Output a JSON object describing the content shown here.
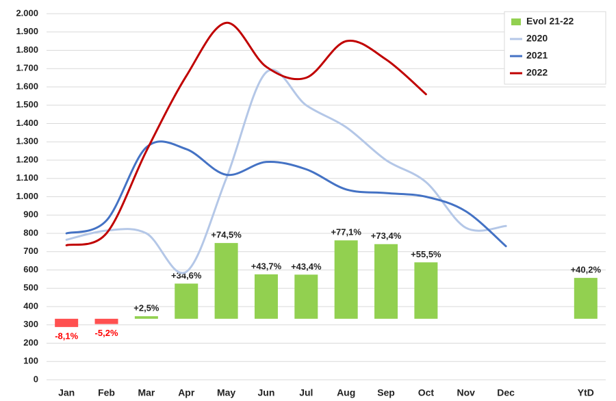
{
  "chart_data": {
    "type": "bar_line",
    "categories": [
      "Jan",
      "Feb",
      "Mar",
      "Apr",
      "May",
      "Jun",
      "Jul",
      "Aug",
      "Sep",
      "Oct",
      "Nov",
      "Dec",
      null,
      "YtD"
    ],
    "ylim": [
      0,
      2000
    ],
    "yticks": [
      0,
      100,
      200,
      300,
      400,
      500,
      600,
      700,
      800,
      900,
      {
        "value": 1000,
        "label": "1.000"
      },
      {
        "value": 1100,
        "label": "1.100"
      },
      {
        "value": 1200,
        "label": "1.200"
      },
      {
        "value": 1300,
        "label": "1.300"
      },
      {
        "value": 1400,
        "label": "1.400"
      },
      {
        "value": 1500,
        "label": "1.500"
      },
      {
        "value": 1600,
        "label": "1.600"
      },
      {
        "value": 1700,
        "label": "1.700"
      },
      {
        "value": 1800,
        "label": "1.800"
      },
      {
        "value": 1900,
        "label": "1.900"
      },
      {
        "value": 2000,
        "label": "2.000"
      }
    ],
    "y2lim": [
      -60,
      300
    ],
    "grid": true,
    "legend": "top-right",
    "bars": {
      "name": "Evol 21-22",
      "color": "#92d050",
      "negative_color": "#ff5050",
      "axis": "y2",
      "values": [
        -8.1,
        -5.2,
        2.5,
        34.6,
        74.5,
        43.7,
        43.4,
        77.1,
        73.4,
        55.5,
        null,
        null,
        null,
        40.2
      ],
      "value_labels": [
        "-8,1%",
        "-5,2%",
        "+2,5%",
        "+34,6%",
        "+74,5%",
        "+43,7%",
        "+43,4%",
        "+77,1%",
        "+73,4%",
        "+55,5%",
        null,
        null,
        null,
        "+40,2%"
      ]
    },
    "series": [
      {
        "name": "2020",
        "color": "#b4c7e7",
        "values": [
          765,
          815,
          800,
          590,
          1100,
          1680,
          1500,
          1380,
          1200,
          1080,
          830,
          840,
          null,
          null
        ]
      },
      {
        "name": "2021",
        "color": "#4472c4",
        "values": [
          800,
          870,
          1270,
          1260,
          1120,
          1190,
          1150,
          1040,
          1020,
          1000,
          920,
          730,
          null,
          null
        ]
      },
      {
        "name": "2022",
        "color": "#c00000",
        "values": [
          735,
          800,
          1250,
          1660,
          1950,
          1710,
          1650,
          1850,
          1750,
          1560,
          null,
          null,
          null,
          null
        ]
      }
    ]
  }
}
